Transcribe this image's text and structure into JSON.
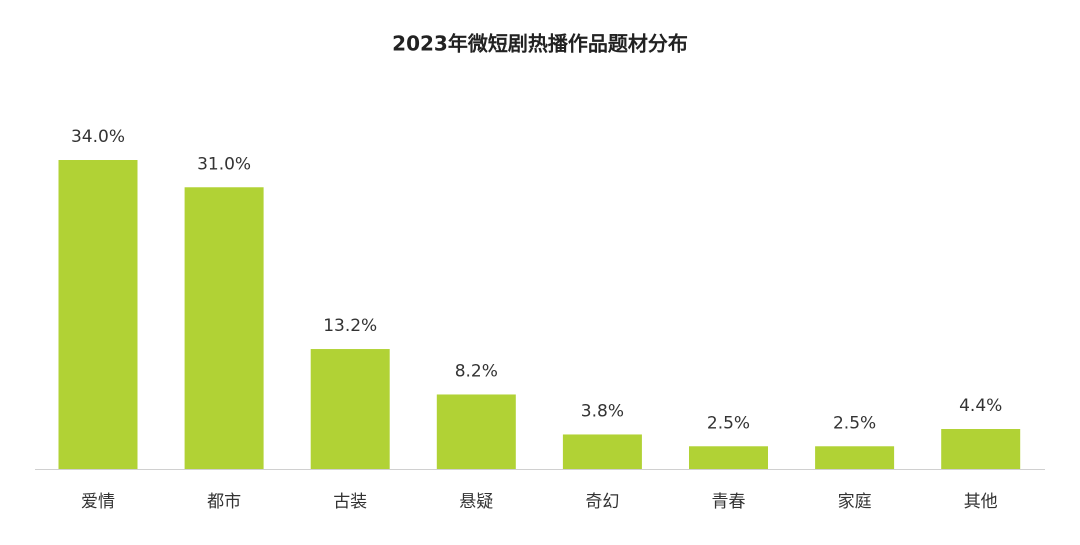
{
  "chart_data": {
    "type": "bar",
    "title": "2023年微短剧热播作品题材分布",
    "categories": [
      "爱情",
      "都市",
      "古装",
      "悬疑",
      "奇幻",
      "青春",
      "家庭",
      "其他"
    ],
    "values": [
      34.0,
      31.0,
      13.2,
      8.2,
      3.8,
      2.5,
      2.5,
      4.4
    ],
    "value_labels": [
      "34.0%",
      "31.0%",
      "13.2%",
      "8.2%",
      "3.8%",
      "2.5%",
      "2.5%",
      "4.4%"
    ],
    "color": "#b1d235"
  }
}
